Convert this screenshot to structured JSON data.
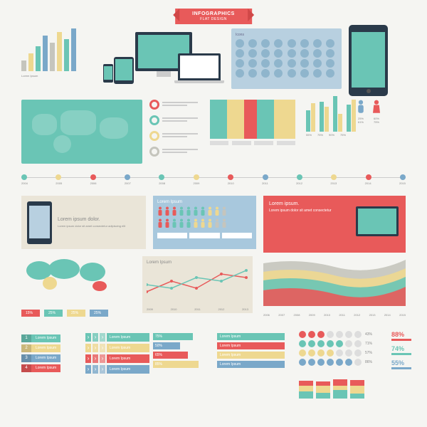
{
  "colors": {
    "teal": "#6ac5b5",
    "red": "#e85a5a",
    "yellow": "#eed890",
    "blue": "#7aa8c9",
    "grey": "#c5c5bd",
    "dark": "#2a3a4a",
    "cream": "#eae5d8",
    "lightblue": "#b8d0e0"
  },
  "banner": {
    "title": "INFOGRAPHICS",
    "sub": "FLAT DESIGN"
  },
  "bars_tl": {
    "values": [
      15,
      25,
      35,
      50,
      40,
      55,
      45,
      60
    ],
    "colors": [
      "#c5c5bd",
      "#eed890",
      "#6ac5b5",
      "#7aa8c9",
      "#c5c5bd",
      "#eed890",
      "#6ac5b5",
      "#7aa8c9"
    ],
    "label": "Lorem Ipsum"
  },
  "icons_panel": {
    "title": "Icons",
    "count": 32
  },
  "bullets": [
    {
      "color": "#e85a5a"
    },
    {
      "color": "#6ac5b5"
    },
    {
      "color": "#eed890"
    },
    {
      "color": "#c5c5bd"
    }
  ],
  "bars_grp": {
    "groups": [
      [
        30,
        40
      ],
      [
        42,
        35
      ],
      [
        50,
        25
      ],
      [
        38,
        45
      ]
    ],
    "colors": [
      "#6ac5b5",
      "#eed890"
    ],
    "labels": [
      "55%",
      "75%",
      "90%",
      "75%"
    ]
  },
  "gender": {
    "male": {
      "color": "#7aa8c9",
      "pct": "25%",
      "sub": "61%"
    },
    "female": {
      "color": "#e85a5a",
      "pct": "60%",
      "sub": "75%"
    }
  },
  "timeline": {
    "years": [
      "2004",
      "2005",
      "2006",
      "2007",
      "2008",
      "2009",
      "2010",
      "2011",
      "2012",
      "2013",
      "2014",
      "2015"
    ],
    "colors": [
      "#6ac5b5",
      "#eed890",
      "#e85a5a",
      "#7aa8c9",
      "#6ac5b5",
      "#eed890",
      "#e85a5a",
      "#7aa8c9",
      "#6ac5b5",
      "#eed890",
      "#e85a5a",
      "#7aa8c9"
    ]
  },
  "phone_card": {
    "title": "Lorem ipsum dolor.",
    "body": "Lorem ipsum dolor sit amet consectetur adipiscing elit"
  },
  "people_card": {
    "title": "Lorem Ipsum",
    "row1_colors": [
      "#e85a5a",
      "#e85a5a",
      "#e85a5a",
      "#6ac5b5",
      "#6ac5b5",
      "#6ac5b5",
      "#6ac5b5",
      "#eed890",
      "#eed890",
      "#c5c5bd"
    ],
    "row2_colors": [
      "#e85a5a",
      "#e85a5a",
      "#6ac5b5",
      "#6ac5b5",
      "#6ac5b5",
      "#eed890",
      "#eed890",
      "#eed890",
      "#c5c5bd",
      "#c5c5bd"
    ]
  },
  "red_card": {
    "title": "Lorem ipsum.",
    "body": "Lorem ipsum dolor sit amet consectetur"
  },
  "linechart": {
    "title": "Lorem Ipsum",
    "years": [
      "2009",
      "2010",
      "2011",
      "2012",
      "2013"
    ],
    "series": [
      {
        "color": "#e85a5a",
        "pts": [
          20,
          35,
          25,
          45,
          40
        ]
      },
      {
        "color": "#6ac5b5",
        "pts": [
          30,
          25,
          40,
          35,
          50
        ]
      }
    ]
  },
  "areachart": {
    "years": [
      "2006",
      "2007",
      "2008",
      "2009",
      "2010",
      "2011",
      "2012",
      "2013",
      "2014",
      "2015"
    ],
    "layers": [
      {
        "color": "#c5c5bd",
        "h": 60
      },
      {
        "color": "#eed890",
        "h": 48
      },
      {
        "color": "#6ac5b5",
        "h": 36
      },
      {
        "color": "#e85a5a",
        "h": 22
      }
    ]
  },
  "tags": [
    {
      "color": "#e85a5a",
      "label": "15%"
    },
    {
      "color": "#6ac5b5",
      "label": "25%"
    },
    {
      "color": "#eed890",
      "label": "25%"
    },
    {
      "color": "#7aa8c9",
      "label": "25%"
    }
  ],
  "numbered": [
    {
      "n": "1",
      "color": "#6ac5b5",
      "label": "Lorem Ipsum"
    },
    {
      "n": "2",
      "color": "#eed890",
      "label": "Lorem Ipsum"
    },
    {
      "n": "3",
      "color": "#7aa8c9",
      "label": "Lorem Ipsum"
    },
    {
      "n": "4",
      "color": "#e85a5a",
      "label": "Lorem Ipsum"
    }
  ],
  "arrows": [
    {
      "color": "#6ac5b5",
      "label": "Lorem Ipsum"
    },
    {
      "color": "#eed890",
      "label": "Lorem Ipsum"
    },
    {
      "color": "#e85a5a",
      "label": "Lorem Ipsum"
    },
    {
      "color": "#7aa8c9",
      "label": "Lorem Ipsum"
    }
  ],
  "pct_bars": [
    {
      "pct": 75,
      "color": "#6ac5b5",
      "label": "75%"
    },
    {
      "pct": 50,
      "color": "#7aa8c9",
      "label": "50%"
    },
    {
      "pct": 65,
      "color": "#e85a5a",
      "label": "65%"
    },
    {
      "pct": 85,
      "color": "#eed890",
      "label": "85%"
    }
  ],
  "ribbons": [
    {
      "color": "#6ac5b5",
      "label": "Lorem Ipsum"
    },
    {
      "color": "#e85a5a",
      "label": "Lorem Ipsum"
    },
    {
      "color": "#eed890",
      "label": "Lorem Ipsum"
    },
    {
      "color": "#7aa8c9",
      "label": "Lorem Ipsum"
    }
  ],
  "dots_grid": [
    {
      "filled": 3,
      "total": 7,
      "color": "#e85a5a",
      "pct": "43%"
    },
    {
      "filled": 5,
      "total": 7,
      "color": "#6ac5b5",
      "pct": "71%"
    },
    {
      "filled": 4,
      "total": 7,
      "color": "#eed890",
      "pct": "57%"
    },
    {
      "filled": 6,
      "total": 7,
      "color": "#7aa8c9",
      "pct": "86%"
    }
  ],
  "mini_bars": {
    "cols": [
      [
        {
          "c": "#6ac5b5",
          "h": 10
        },
        {
          "c": "#eed890",
          "h": 8
        },
        {
          "c": "#e85a5a",
          "h": 7
        }
      ],
      [
        {
          "c": "#6ac5b5",
          "h": 8
        },
        {
          "c": "#eed890",
          "h": 10
        },
        {
          "c": "#e85a5a",
          "h": 6
        }
      ],
      [
        {
          "c": "#6ac5b5",
          "h": 12
        },
        {
          "c": "#eed890",
          "h": 6
        },
        {
          "c": "#e85a5a",
          "h": 9
        }
      ],
      [
        {
          "c": "#6ac5b5",
          "h": 7
        },
        {
          "c": "#eed890",
          "h": 11
        },
        {
          "c": "#e85a5a",
          "h": 8
        }
      ]
    ]
  },
  "pcol": [
    {
      "pct": "88%",
      "color": "#e85a5a"
    },
    {
      "pct": "74%",
      "color": "#6ac5b5"
    },
    {
      "pct": "55%",
      "color": "#7aa8c9"
    }
  ]
}
